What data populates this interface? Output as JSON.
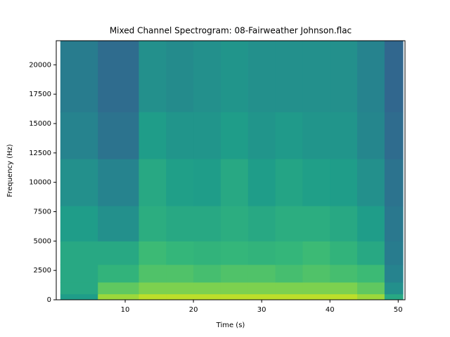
{
  "chart_data": {
    "type": "spectrogram",
    "title": "Mixed Channel Spectrogram: 08-Fairweather Johnson.flac",
    "x_label": "Time (s)",
    "y_label": "Frequency (Hz)",
    "xlim": [
      -0.1,
      51.0
    ],
    "ylim": [
      0,
      22050
    ],
    "xticks": [
      10,
      20,
      30,
      40,
      50
    ],
    "yticks": [
      0,
      2500,
      5000,
      7500,
      10000,
      12500,
      15000,
      17500,
      20000
    ],
    "colormap": "viridis",
    "x_edges": [
      0.5,
      6,
      12,
      16,
      20,
      24,
      28,
      32,
      36,
      40,
      44,
      48,
      50.7
    ],
    "y_edges": [
      0,
      500,
      1500,
      3000,
      5000,
      8000,
      12000,
      16000,
      22050
    ],
    "values": [
      [
        0.55,
        0.85,
        0.9,
        0.9,
        0.9,
        0.9,
        0.9,
        0.9,
        0.9,
        0.9,
        0.85,
        0.6
      ],
      [
        0.6,
        0.75,
        0.8,
        0.8,
        0.8,
        0.8,
        0.8,
        0.8,
        0.8,
        0.8,
        0.75,
        0.5
      ],
      [
        0.6,
        0.65,
        0.72,
        0.72,
        0.7,
        0.72,
        0.72,
        0.7,
        0.72,
        0.7,
        0.68,
        0.45
      ],
      [
        0.6,
        0.6,
        0.68,
        0.66,
        0.65,
        0.66,
        0.65,
        0.66,
        0.68,
        0.65,
        0.6,
        0.42
      ],
      [
        0.55,
        0.5,
        0.62,
        0.6,
        0.6,
        0.62,
        0.6,
        0.62,
        0.62,
        0.6,
        0.55,
        0.4
      ],
      [
        0.5,
        0.45,
        0.6,
        0.56,
        0.55,
        0.6,
        0.55,
        0.58,
        0.56,
        0.55,
        0.5,
        0.38
      ],
      [
        0.45,
        0.38,
        0.55,
        0.52,
        0.52,
        0.55,
        0.52,
        0.54,
        0.52,
        0.52,
        0.46,
        0.35
      ],
      [
        0.42,
        0.35,
        0.5,
        0.48,
        0.5,
        0.52,
        0.5,
        0.5,
        0.5,
        0.5,
        0.45,
        0.33
      ]
    ]
  }
}
